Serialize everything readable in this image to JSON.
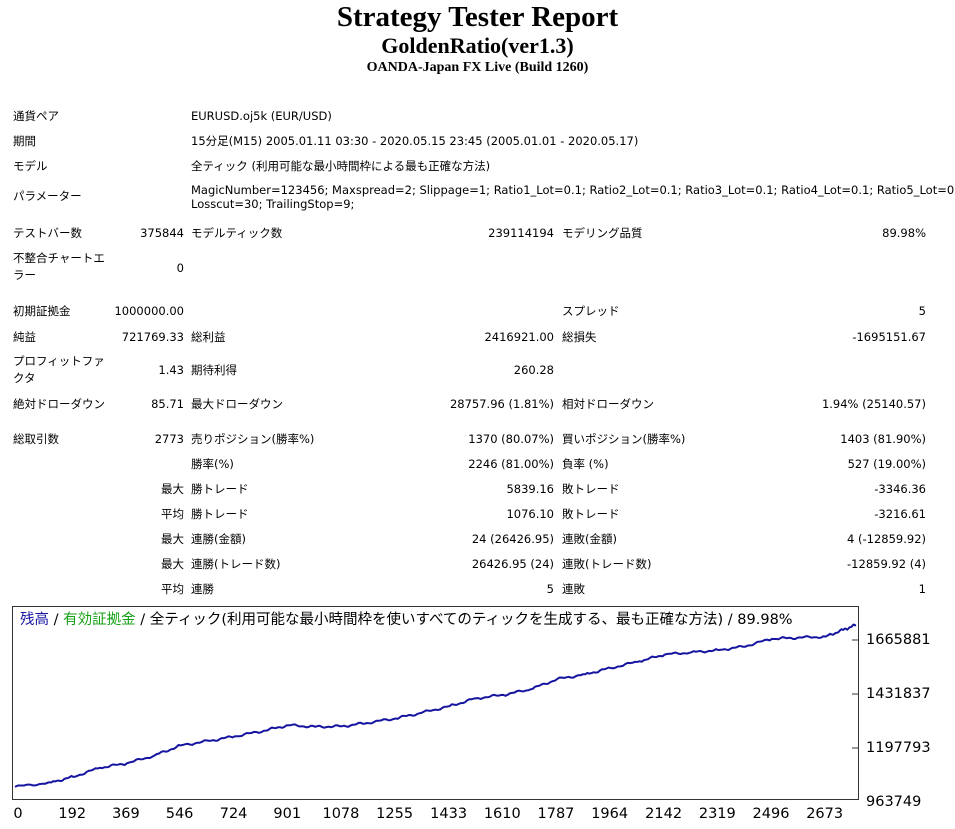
{
  "header": {
    "title": "Strategy Tester Report",
    "subtitle": "GoldenRatio(ver1.3)",
    "build": "OANDA-Japan FX Live (Build 1260)"
  },
  "info": {
    "pair_label": "通貨ペア",
    "pair_value": "EURUSD.oj5k (EUR/USD)",
    "period_label": "期間",
    "period_value": "15分足(M15) 2005.01.11 03:30 - 2020.05.15 23:45 (2005.01.01 - 2020.05.17)",
    "model_label": "モデル",
    "model_value": "全ティック (利用可能な最小時間枠による最も正確な方法)",
    "params_label": "パラメーター",
    "params_line1": "MagicNumber=123456; Maxspread=2; Slippage=1; Ratio1_Lot=0.1; Ratio2_Lot=0.1; Ratio3_Lot=0.1; Ratio4_Lot=0.1; Ratio5_Lot=0.1;",
    "params_line2": "Losscut=30; TrailingStop=9;"
  },
  "stats": {
    "bars_label": "テストバー数",
    "bars_value": "375844",
    "ticks_label": "モデルティック数",
    "ticks_value": "239114194",
    "quality_label": "モデリング品質",
    "quality_value": "89.98%",
    "mismatch_label1": "不整合チャートエ",
    "mismatch_label2": "ラー",
    "mismatch_value": "0",
    "deposit_label": "初期証拠金",
    "deposit_value": "1000000.00",
    "spread_label": "スプレッド",
    "spread_value": "5",
    "net_label": "純益",
    "net_value": "721769.33",
    "gross_profit_label": "総利益",
    "gross_profit_value": "2416921.00",
    "gross_loss_label": "総損失",
    "gross_loss_value": "-1695151.67",
    "pf_label1": "プロフィットファ",
    "pf_label2": "クタ",
    "pf_value": "1.43",
    "expected_label": "期待利得",
    "expected_value": "260.28",
    "abs_dd_label": "絶対ドローダウン",
    "abs_dd_value": "85.71",
    "max_dd_label": "最大ドローダウン",
    "max_dd_value": "28757.96 (1.81%)",
    "rel_dd_label": "相対ドローダウン",
    "rel_dd_value": "1.94% (25140.57)",
    "total_trades_label": "総取引数",
    "total_trades_value": "2773",
    "short_label": "売りポジション(勝率%)",
    "short_value": "1370 (80.07%)",
    "long_label": "買いポジション(勝率%)",
    "long_value": "1403 (81.90%)",
    "win_rate_label": "勝率(%)",
    "win_rate_value": "2246 (81.00%)",
    "loss_rate_label": "負率 (%)",
    "loss_rate_value": "527 (19.00%)",
    "max_word": "最大",
    "avg_word": "平均",
    "max_win_label": "勝トレード",
    "max_win_value": "5839.16",
    "max_loss_label": "敗トレード",
    "max_loss_value": "-3346.36",
    "avg_win_label": "勝トレード",
    "avg_win_value": "1076.10",
    "avg_loss_label": "敗トレード",
    "avg_loss_value": "-3216.61",
    "max_cw_amt_label": "連勝(金額)",
    "max_cw_amt_value": "24 (26426.95)",
    "max_cl_amt_label": "連敗(金額)",
    "max_cl_amt_value": "4 (-12859.92)",
    "max_cw_cnt_label": "連勝(トレード数)",
    "max_cw_cnt_value": "26426.95 (24)",
    "max_cl_cnt_label": "連敗(トレード数)",
    "max_cl_cnt_value": "-12859.92 (4)",
    "avg_cw_label": "連勝",
    "avg_cw_value": "5",
    "avg_cl_label": "連敗",
    "avg_cl_value": "1"
  },
  "chart_data": {
    "type": "line",
    "legend_balance": "残高",
    "legend_sep1": " / ",
    "legend_equity": "有効証拠金",
    "legend_rest": " / 全ティック(利用可能な最小時間枠を使いすべてのティックを生成する、最も正確な方法) / 89.98%",
    "balance_color": "#1515a0",
    "equity_color": "#14a014",
    "x_ticks": [
      "0",
      "192",
      "369",
      "546",
      "724",
      "901",
      "1078",
      "1255",
      "1433",
      "1610",
      "1787",
      "1964",
      "2142",
      "2319",
      "2496",
      "2673"
    ],
    "y_ticks": [
      "1665881",
      "1431837",
      "1197793",
      "963749"
    ],
    "xlim": [
      0,
      2773
    ],
    "ylim": [
      963749,
      1721769
    ],
    "series": [
      {
        "values_x": [
          0,
          120,
          192,
          280,
          369,
          460,
          546,
          640,
          724,
          820,
          901,
          990,
          1078,
          1160,
          1255,
          1340,
          1433,
          1520,
          1610,
          1700,
          1787,
          1880,
          1964,
          2060,
          2142,
          2230,
          2319,
          2400,
          2496,
          2580,
          2673,
          2730,
          2773
        ],
        "values_y": [
          1000000,
          1020000,
          1045000,
          1085000,
          1105000,
          1140000,
          1185000,
          1205000,
          1225000,
          1250000,
          1275000,
          1268000,
          1270000,
          1285000,
          1305000,
          1330000,
          1360000,
          1395000,
          1410000,
          1435000,
          1480000,
          1502000,
          1530000,
          1560000,
          1590000,
          1600000,
          1610000,
          1625000,
          1660000,
          1665000,
          1670000,
          1700000,
          1721769
        ]
      }
    ]
  }
}
